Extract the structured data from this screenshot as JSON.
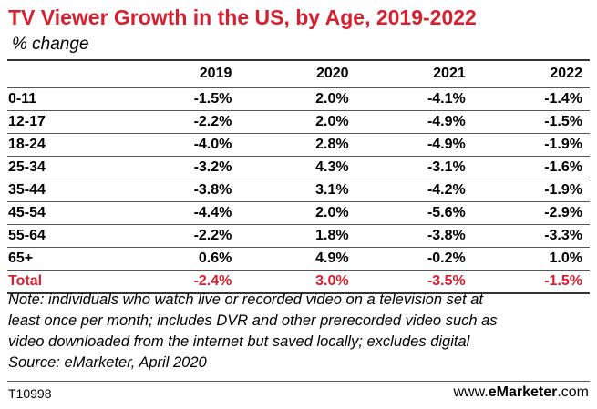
{
  "chart_data": {
    "type": "table",
    "title": "TV Viewer Growth in the US, by Age, 2019-2022",
    "subtitle": "% change",
    "columns": [
      "2019",
      "2020",
      "2021",
      "2022"
    ],
    "rows": [
      {
        "label": "0-11",
        "values": [
          "-1.5%",
          "2.0%",
          "-4.1%",
          "-1.4%"
        ]
      },
      {
        "label": "12-17",
        "values": [
          "-2.2%",
          "2.0%",
          "-4.9%",
          "-1.5%"
        ]
      },
      {
        "label": "18-24",
        "values": [
          "-4.0%",
          "2.8%",
          "-4.9%",
          "-1.9%"
        ]
      },
      {
        "label": "25-34",
        "values": [
          "-3.2%",
          "4.3%",
          "-3.1%",
          "-1.6%"
        ]
      },
      {
        "label": "35-44",
        "values": [
          "-3.8%",
          "3.1%",
          "-4.2%",
          "-1.9%"
        ]
      },
      {
        "label": "45-54",
        "values": [
          "-4.4%",
          "2.0%",
          "-5.6%",
          "-2.9%"
        ]
      },
      {
        "label": "55-64",
        "values": [
          "-2.2%",
          "1.8%",
          "-3.8%",
          "-3.3%"
        ]
      },
      {
        "label": "65+",
        "values": [
          "0.6%",
          "4.9%",
          "-0.2%",
          "1.0%"
        ]
      },
      {
        "label": "Total",
        "values": [
          "-2.4%",
          "3.0%",
          "-3.5%",
          "-1.5%"
        ]
      }
    ],
    "note_lines": [
      "Note: individuals who watch live or recorded video on a television set at",
      "least once per month; includes DVR and other prerecorded video such as",
      "video downloaded from the internet but saved locally; excludes digital",
      "Source: eMarketer, April 2020"
    ],
    "footer_code": "T10998",
    "footer_brand_prefix": "www.",
    "footer_brand_name": "eMarketer",
    "footer_brand_suffix": ".com"
  },
  "colors": {
    "accent": "#d6202f",
    "text": "#000000",
    "rule": "#333333"
  }
}
